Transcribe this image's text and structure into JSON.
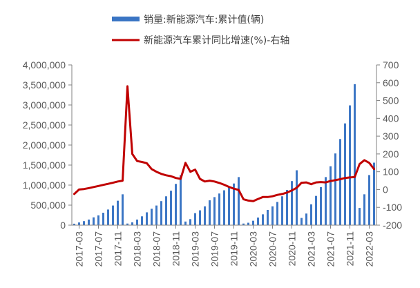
{
  "legend": {
    "bar_label": "销量:新能源汽车:累计值(辆)",
    "line_label": "新能源汽车累计同比增速(%)-右轴"
  },
  "colors": {
    "bar": "#4472C4",
    "bar_fill": "#3A75C4",
    "line": "#C00000",
    "axis": "#808080",
    "tick_text": "#595959"
  },
  "chart_data": {
    "type": "bar+line",
    "title": "",
    "xlabel": "",
    "ylabel": "",
    "y_left": {
      "range": [
        0,
        4000000
      ],
      "ticks": [
        0,
        500000,
        1000000,
        1500000,
        2000000,
        2500000,
        3000000,
        3500000,
        4000000
      ],
      "tick_labels": [
        "0",
        "500,000",
        "1,000,000",
        "1,500,000",
        "2,000,000",
        "2,500,000",
        "3,000,000",
        "3,500,000",
        "4,000,000"
      ]
    },
    "y_right": {
      "range": [
        -200,
        700
      ],
      "ticks": [
        -200,
        -100,
        0,
        100,
        200,
        300,
        400,
        500,
        600,
        700
      ],
      "tick_labels": [
        "-200",
        "-100",
        "0",
        "100",
        "200",
        "300",
        "400",
        "500",
        "600",
        "700"
      ]
    },
    "x_tick_labels": [
      "2017-03",
      "2017-07",
      "2017-11",
      "2018-03",
      "2018-07",
      "2018-11",
      "2019-03",
      "2019-07",
      "2019-11",
      "2020-03",
      "2020-07",
      "2020-11",
      "2021-03",
      "2021-07",
      "2021-11",
      "2022-03"
    ],
    "grid": false,
    "legend_position": "top",
    "x": [
      "2017-02",
      "2017-03",
      "2017-04",
      "2017-05",
      "2017-06",
      "2017-07",
      "2017-08",
      "2017-09",
      "2017-10",
      "2017-11",
      "2017-12",
      "2018-01",
      "2018-02",
      "2018-03",
      "2018-04",
      "2018-05",
      "2018-06",
      "2018-07",
      "2018-08",
      "2018-09",
      "2018-10",
      "2018-11",
      "2018-12",
      "2019-01",
      "2019-02",
      "2019-03",
      "2019-04",
      "2019-05",
      "2019-06",
      "2019-07",
      "2019-08",
      "2019-09",
      "2019-10",
      "2019-11",
      "2019-12",
      "2020-01",
      "2020-02",
      "2020-03",
      "2020-04",
      "2020-05",
      "2020-06",
      "2020-07",
      "2020-08",
      "2020-09",
      "2020-10",
      "2020-11",
      "2020-12",
      "2021-01",
      "2021-02",
      "2021-03",
      "2021-04",
      "2021-05",
      "2021-06",
      "2021-07",
      "2021-08",
      "2021-09",
      "2021-10",
      "2021-11",
      "2021-12",
      "2022-01",
      "2022-02",
      "2022-03",
      "2022-04"
    ],
    "series": [
      {
        "name": "销量:新能源汽车:累计值(辆)",
        "type": "bar",
        "axis": "left",
        "values": [
          36000,
          67000,
          100000,
          140000,
          195000,
          245000,
          310000,
          390000,
          490000,
          610000,
          770000,
          40000,
          70000,
          140000,
          220000,
          320000,
          410000,
          490000,
          600000,
          720000,
          860000,
          1030000,
          1250000,
          90000,
          150000,
          300000,
          370000,
          470000,
          620000,
          700000,
          790000,
          870000,
          950000,
          1040000,
          1200000,
          40000,
          60000,
          110000,
          190000,
          270000,
          380000,
          470000,
          580000,
          720000,
          880000,
          1100000,
          1370000,
          180000,
          290000,
          520000,
          730000,
          950000,
          1200000,
          1470000,
          1790000,
          2150000,
          2540000,
          2990000,
          3520000,
          430000,
          770000,
          1250000,
          1560000
        ]
      },
      {
        "name": "新能源汽车累计同比增速(%)-右轴",
        "type": "line",
        "axis": "right",
        "values": [
          -25,
          0,
          3,
          8,
          14,
          20,
          26,
          32,
          38,
          45,
          50,
          580,
          200,
          160,
          155,
          148,
          115,
          100,
          88,
          80,
          75,
          65,
          60,
          150,
          100,
          112,
          60,
          45,
          50,
          45,
          37,
          27,
          15,
          5,
          -2,
          -55,
          -62,
          -65,
          -53,
          -42,
          -42,
          -38,
          -30,
          -25,
          -17,
          -5,
          10,
          38,
          40,
          30,
          40,
          42,
          40,
          48,
          53,
          58,
          65,
          68,
          70,
          143,
          165,
          150,
          115
        ]
      }
    ]
  }
}
